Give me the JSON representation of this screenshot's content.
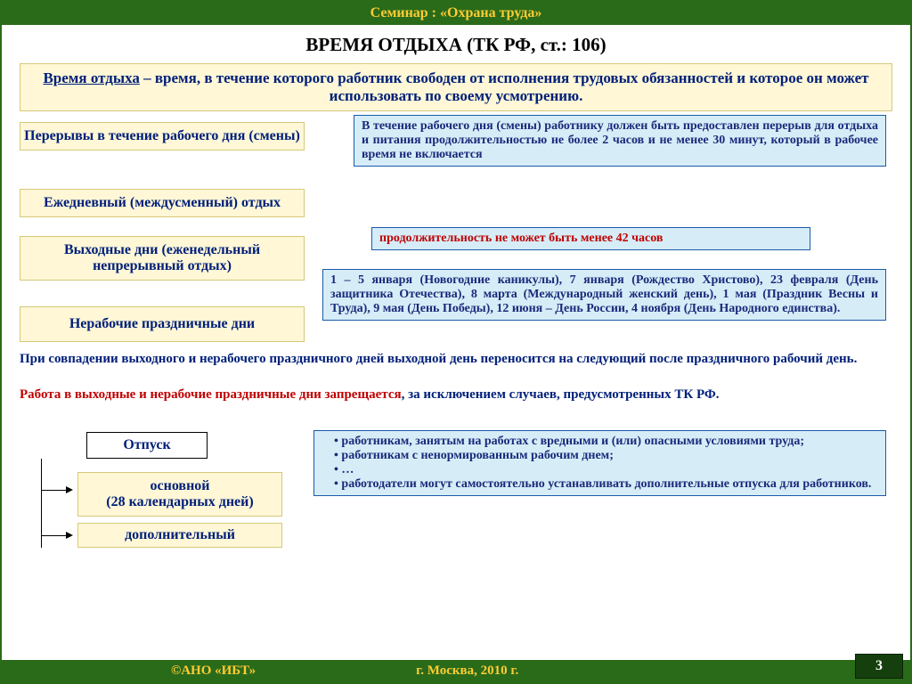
{
  "header": "Семинар : «Охрана труда»",
  "title": "ВРЕМЯ ОТДЫХА (ТК РФ, ст.: 106)",
  "definition": {
    "term": "Время отдыха",
    "rest": " – время, в течение которого работник свободен от исполнения трудовых обязанностей и которое он может использовать по своему усмотрению."
  },
  "left_boxes": {
    "breaks": "Перерывы в течение рабочего дня (смены)",
    "daily": "Ежедневный (междусменный) отдых",
    "weekly": "Выходные дни (еженедельный непрерывный отдых)",
    "holidays": "Нерабочие праздничные дни"
  },
  "callouts": {
    "breaks_text": "В течение рабочего дня (смены) работнику должен быть предоставлен перерыв для отдыха и питания продолжительностью не более 2 часов и не менее 30 минут, который в рабочее время не включается",
    "weekly_text": "продолжительность не может быть менее 42 часов",
    "holidays_text": "1 – 5 января (Новогодние каникулы), 7 января (Рождество Христово), 23 февраля (День защитника Отечества), 8 марта (Международный женский день), 1 мая (Праздник Весны и Труда), 9 мая (День Победы), 12 июня – День России, 4 ноября (День Народного единства)."
  },
  "paragraph1": "При совпадении выходного и нерабочего праздничного дней выходной день переносится на следующий после праздничного рабочий день.",
  "paragraph2_red": "Работа в выходные и нерабочие праздничные дни запрещается",
  "paragraph2_rest": ", за исключением случаев, предусмотренных ТК РФ.",
  "vacation": {
    "title": "Отпуск",
    "basic": "основной\n(28 календарных дней)",
    "additional": "дополнительный",
    "list": [
      "работникам, занятым на работах с вредными и (или) опасными условиями труда;",
      "работникам с ненормированным рабочим днем;",
      "…",
      "работодатели могут самостоятельно устанавливать дополнительные отпуска для работников."
    ]
  },
  "footer": {
    "copyright": "©АНО «ИБТ»",
    "location": "г. Москва, 2010 г.",
    "page": "3"
  },
  "colors": {
    "green": "#2a6b1a",
    "yellow_text": "#ffcc33",
    "cream": "#fff7d6",
    "blue_callout": "#d6edf8",
    "blue_border": "#1a5aa8",
    "navy": "#00207a",
    "red": "#c00000"
  }
}
